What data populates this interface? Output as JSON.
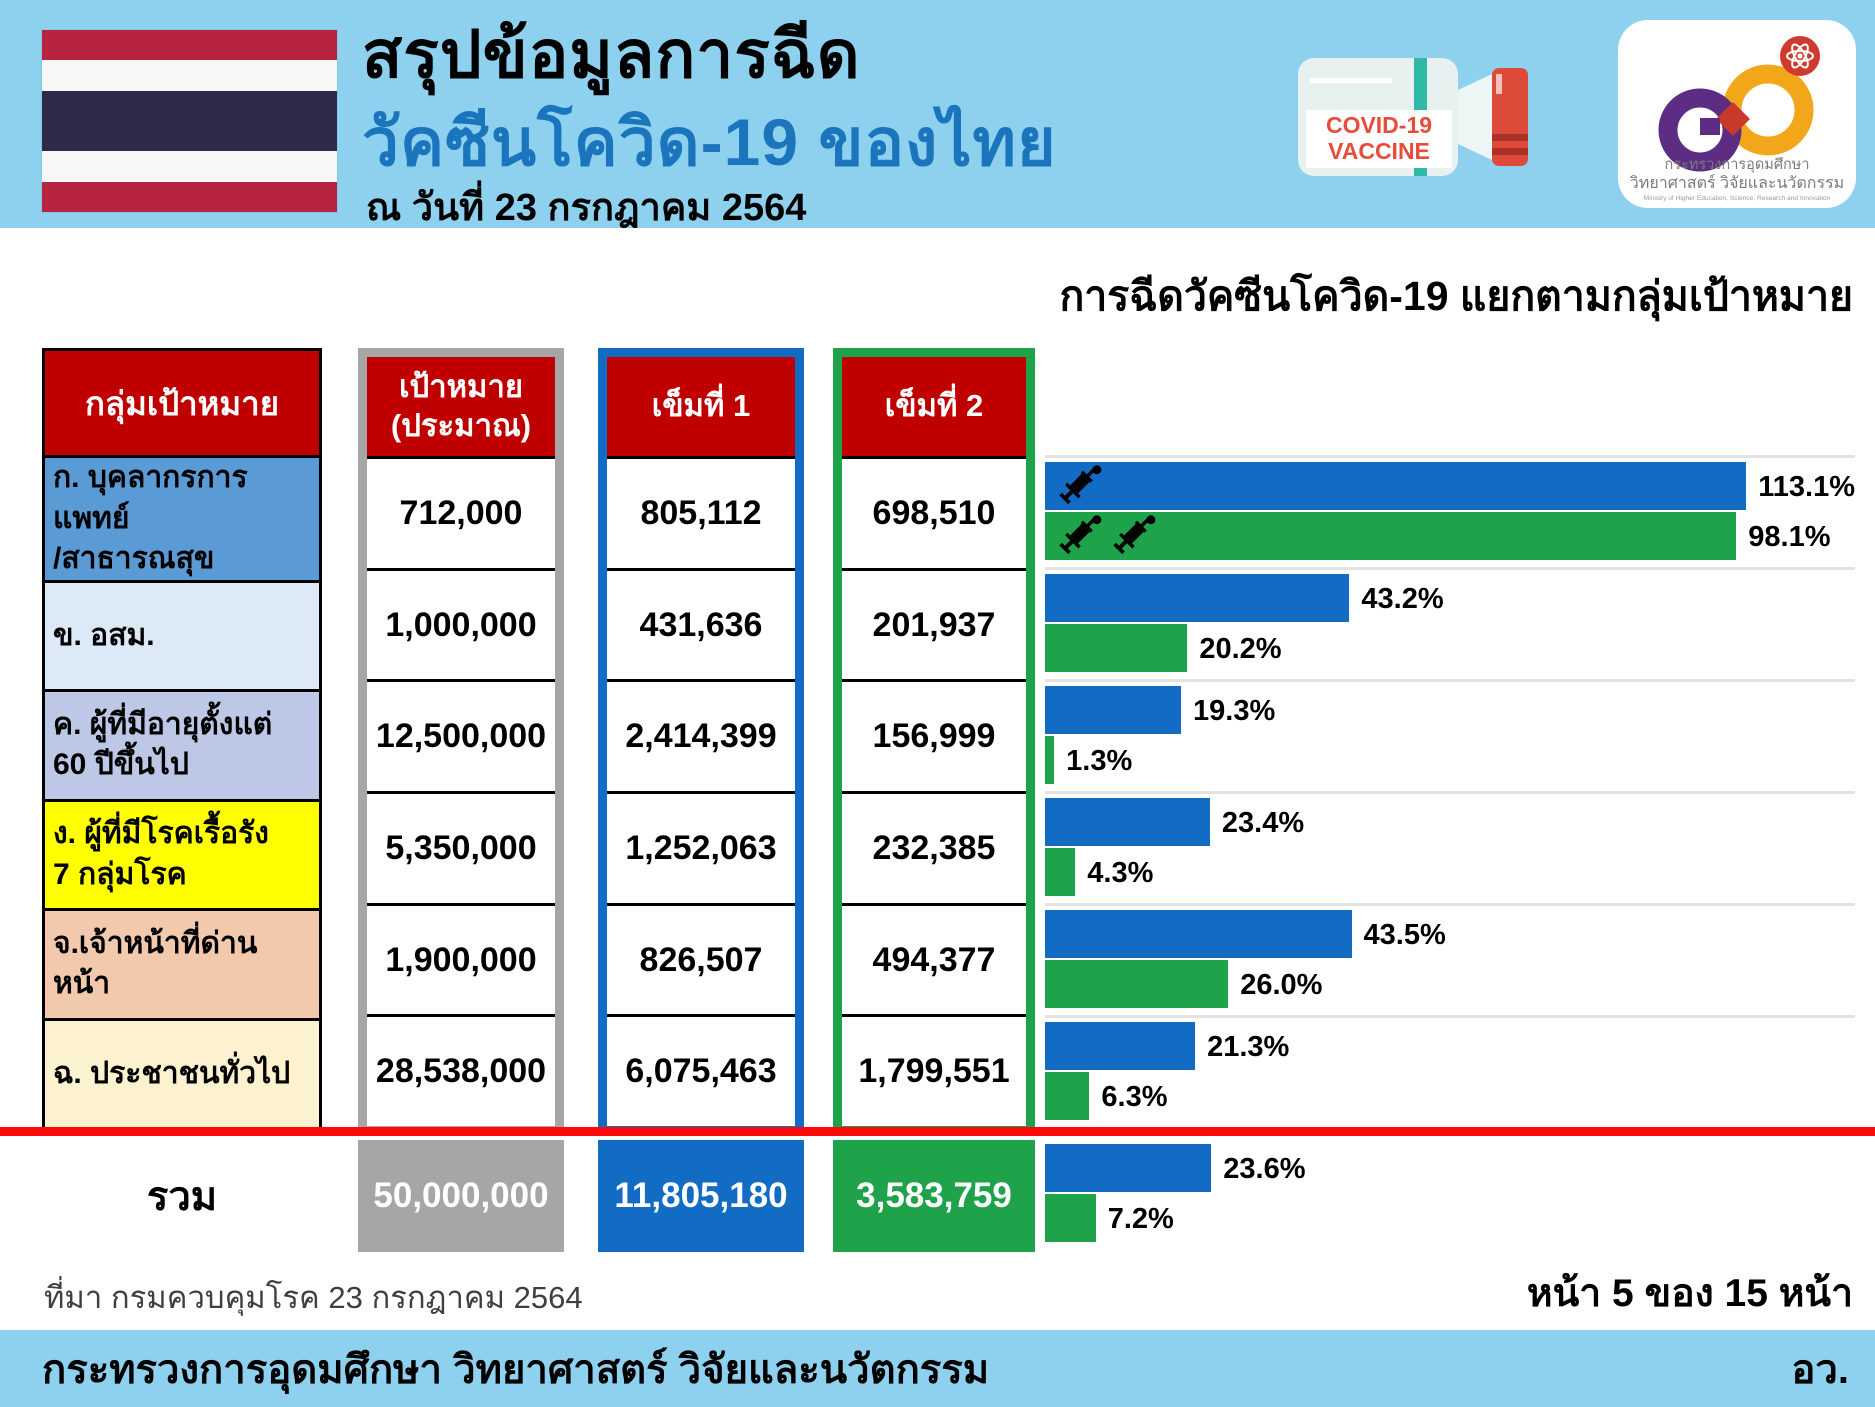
{
  "colors": {
    "band": "#8DD1EF",
    "red": "#C00000",
    "gray": "#A6A6A6",
    "blue": "#126CC4",
    "green": "#1EA24A",
    "lineRed": "#FB0A0A",
    "titleBlue": "#1B75BC",
    "bottleRed": "#E74C3C",
    "flagRed": "#B92342",
    "flagWhite": "#F7F7F7",
    "flagNavy": "#2D2A4A"
  },
  "header": {
    "title_line1": "สรุปข้อมูลการฉีด",
    "title_line2": "วัคซีนโควิด-19 ของไทย",
    "date_line": "ณ วันที่ 23 กรกฎาคม 2564",
    "vaccine_bottle": {
      "label_line1": "COVID-19",
      "label_line2": "VACCINE"
    },
    "ministry_logo": {
      "thai_line1": "กระทรวงการอุดมศึกษา",
      "thai_line2": "วิทยาศาสตร์ วิจัยและนวัตกรรม",
      "english_line": "Ministry of Higher Education, Science, Research and Innovation"
    }
  },
  "table": {
    "header": {
      "group": "กลุ่มเป้าหมาย",
      "target_line1": "เป้าหมาย",
      "target_line2": "(ประมาณ)",
      "dose1": "เข็มที่ 1",
      "dose2": "เข็มที่ 2"
    },
    "rows": [
      {
        "group_line1": "ก. บุคลากรการแพทย์",
        "group_line2": "/สาธารณสุข",
        "color": "#5B9BD5",
        "target": "712,000",
        "dose1": "805,112",
        "dose2": "698,510"
      },
      {
        "group_line1": "ข. อสม.",
        "group_line2": "",
        "color": "#DCE9F7",
        "target": "1,000,000",
        "dose1": "431,636",
        "dose2": "201,937"
      },
      {
        "group_line1": "ค. ผู้ที่มีอายุตั้งแต่",
        "group_line2": "60 ปีขึ้นไป",
        "color": "#BCC8E6",
        "target": "12,500,000",
        "dose1": "2,414,399",
        "dose2": "156,999"
      },
      {
        "group_line1": "ง. ผู้ที่มีโรคเรื้อรัง",
        "group_line2": "7 กลุ่มโรค",
        "color": "#FFFF00",
        "target": "5,350,000",
        "dose1": "1,252,063",
        "dose2": "232,385"
      },
      {
        "group_line1": "จ.เจ้าหน้าที่ด่านหน้า",
        "group_line2": "",
        "color": "#F2C9AC",
        "target": "1,900,000",
        "dose1": "826,507",
        "dose2": "494,377"
      },
      {
        "group_line1": "ฉ. ประชาชนทั่วไป",
        "group_line2": "",
        "color": "#FDF2D0",
        "target": "28,538,000",
        "dose1": "6,075,463",
        "dose2": "1,799,551"
      }
    ],
    "total": {
      "label": "รวม",
      "target": "50,000,000",
      "dose1": "11,805,180",
      "dose2": "3,583,759"
    }
  },
  "chart_data": {
    "type": "bar",
    "orientation": "horizontal",
    "title": "การฉีดวัคซีนโควิด-19 แยกตามกลุ่มเป้าหมาย",
    "categories": [
      "ก. บุคลากรการแพทย์/สาธารณสุข",
      "ข. อสม.",
      "ค. ผู้ที่มีอายุตั้งแต่ 60 ปีขึ้นไป",
      "ง. ผู้ที่มีโรคเรื้อรัง 7 กลุ่มโรค",
      "จ.เจ้าหน้าที่ด่านหน้า",
      "ฉ. ประชาชนทั่วไป",
      "รวม"
    ],
    "series": [
      {
        "name": "เข็มที่ 1",
        "color": "#126CC4",
        "values": [
          113.1,
          43.2,
          19.3,
          23.4,
          43.5,
          21.3,
          23.6
        ]
      },
      {
        "name": "เข็มที่ 2",
        "color": "#1EA24A",
        "values": [
          98.1,
          20.2,
          1.3,
          4.3,
          26.0,
          6.3,
          7.2
        ]
      }
    ],
    "axis_max_display": 100,
    "value_suffix": "%",
    "grid": false,
    "legend": "none"
  },
  "footer": {
    "source": "ที่มา กรมควบคุมโรค 23 กรกฎาคม 2564",
    "page_indicator": "หน้า 5 ของ 15 หน้า",
    "ministry": "กระทรวงการอุดมศึกษา วิทยาศาสตร์ วิจัยและนวัตกรรม",
    "abbrev": "อว."
  }
}
